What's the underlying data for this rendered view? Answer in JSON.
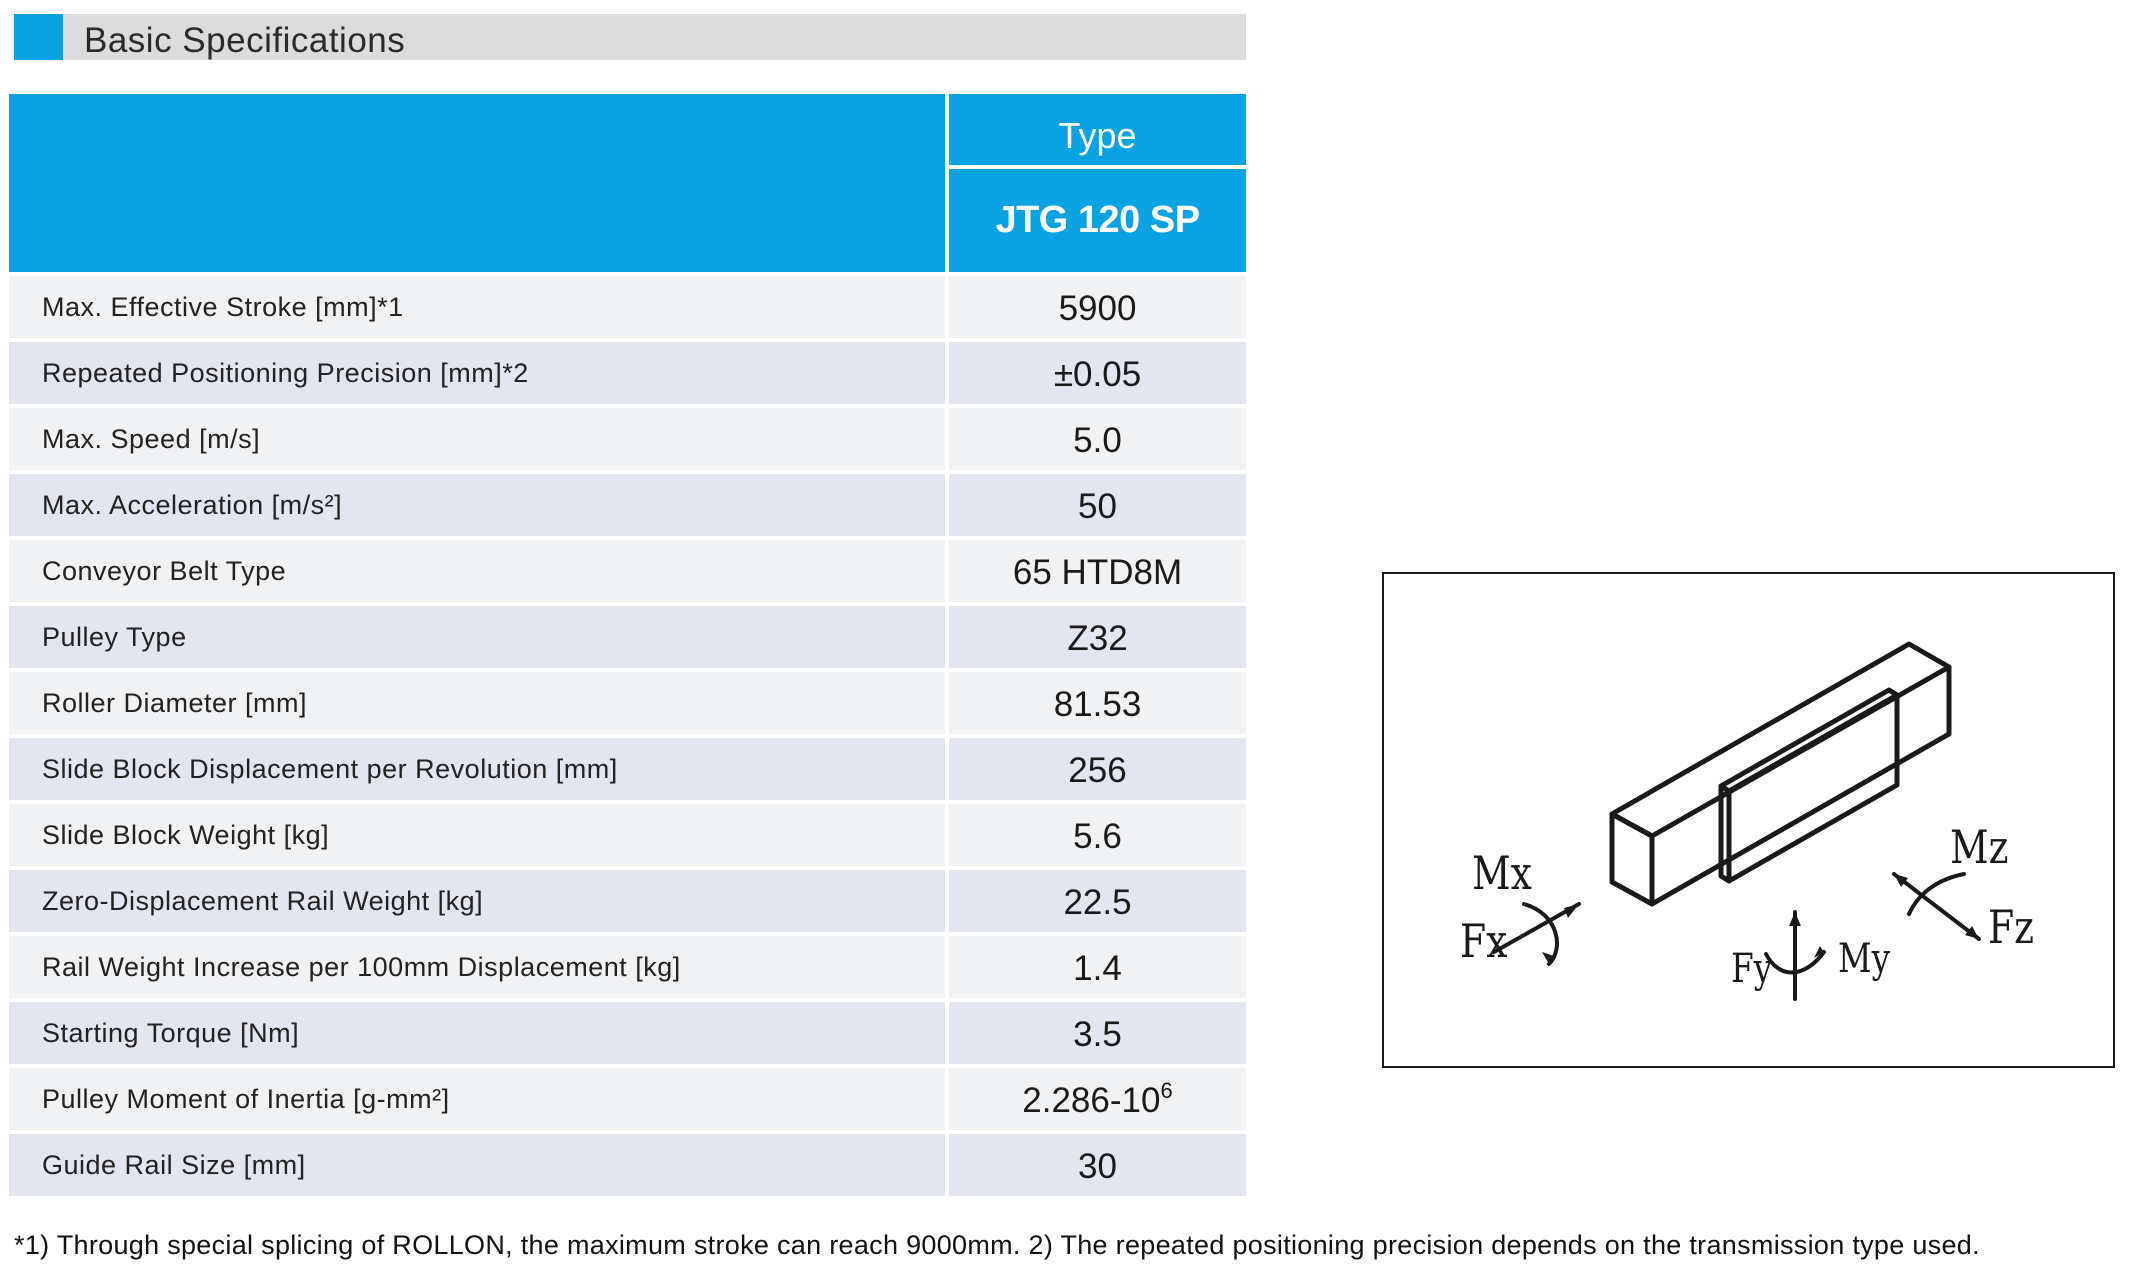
{
  "header": {
    "title": "Basic Specifications"
  },
  "table": {
    "type_label": "Type",
    "model": "JTG 120 SP",
    "rows": [
      {
        "label": "Max. Effective Stroke [mm]*1",
        "value": "5900"
      },
      {
        "label": "Repeated Positioning Precision [mm]*2",
        "value": "±0.05"
      },
      {
        "label": "Max. Speed [m/s]",
        "value": "5.0"
      },
      {
        "label": "Max.  Acceleration [m/s²]",
        "value": "50"
      },
      {
        "label": "Conveyor Belt Type",
        "value": "65 HTD8M"
      },
      {
        "label": "Pulley Type",
        "value": "Z32"
      },
      {
        "label": "Roller Diameter [mm]",
        "value": "81.53"
      },
      {
        "label": "Slide Block Displacement per Revolution [mm]",
        "value": "256"
      },
      {
        "label": "Slide Block Weight [kg]",
        "value": "5.6"
      },
      {
        "label": "Zero-Displacement Rail Weight [kg]",
        "value": "22.5"
      },
      {
        "label": "Rail Weight Increase per 100mm Displacement [kg]",
        "value": "1.4"
      },
      {
        "label": "Starting Torque [Nm]",
        "value": "3.5"
      },
      {
        "label": "Pulley Moment of Inertia [g-mm²]",
        "value": "2.286-10",
        "sup": "6"
      },
      {
        "label": "Guide Rail Size [mm]",
        "value": "30"
      }
    ]
  },
  "diagram": {
    "labels": {
      "mx": "Mx",
      "fx": "Fx",
      "fy": "Fy",
      "my": "My",
      "mz": "Mz",
      "fz": "Fz"
    }
  },
  "footnote": "*1) Through special splicing of ROLLON, the maximum stroke can reach 9000mm.   2) The repeated positioning precision depends on the transmission type used."
}
